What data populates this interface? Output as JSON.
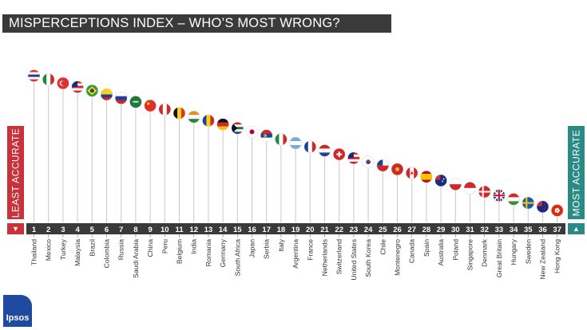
{
  "title": "MISPERCEPTIONS INDEX – WHO’S MOST WRONG?",
  "left_label": "LEAST ACCURATE",
  "right_label": "MOST ACCURATE",
  "left_arrow": "▼",
  "right_arrow": "▲",
  "logo_text": "Ipsos",
  "colors": {
    "title_bg": "#3a3a3a",
    "least": "#c8323c",
    "most": "#2a8a86",
    "stem": "#c8c8c8",
    "logo": "#1f4aa0"
  },
  "chart_data": {
    "type": "lollipop",
    "title": "MISPERCEPTIONS INDEX – WHO’S MOST WRONG?",
    "categories": [
      "Thailand",
      "Mexico",
      "Turkey",
      "Malaysia",
      "Brazil",
      "Colombia",
      "Russia",
      "Saudi Arabia",
      "China",
      "Peru",
      "Belgium",
      "India",
      "Romania",
      "Germany",
      "South Africa",
      "Japan",
      "Serbia",
      "Italy",
      "Argentina",
      "France",
      "Netherlands",
      "Switzerland",
      "United States",
      "South Korea",
      "Chile",
      "Montenegro",
      "Canada",
      "Spain",
      "Australia",
      "Poland",
      "Singapore",
      "Denmark",
      "Great Britain",
      "Hungary",
      "Sweden",
      "New Zealand",
      "Hong Kong"
    ],
    "ranks": [
      1,
      2,
      3,
      4,
      5,
      6,
      7,
      8,
      9,
      10,
      11,
      12,
      13,
      14,
      15,
      16,
      17,
      18,
      19,
      20,
      21,
      22,
      23,
      24,
      25,
      26,
      27,
      28,
      29,
      30,
      31,
      32,
      33,
      34,
      35,
      36,
      37
    ],
    "flags": [
      {
        "kind": "h",
        "colors": [
          "#e03030",
          "#ffffff",
          "#2a3a8c",
          "#ffffff",
          "#e03030"
        ]
      },
      {
        "kind": "v",
        "colors": [
          "#1e8a3e",
          "#ffffff",
          "#d02828"
        ]
      },
      {
        "kind": "solid",
        "colors": [
          "#e03030"
        ],
        "mark": "crescent"
      },
      {
        "kind": "h",
        "colors": [
          "#d02828",
          "#ffffff",
          "#d02828",
          "#ffffff",
          "#d02828"
        ],
        "canton": "#1a2a80"
      },
      {
        "kind": "solid",
        "colors": [
          "#2a9a3a"
        ],
        "mark": "diamond"
      },
      {
        "kind": "h",
        "colors": [
          "#fcd116",
          "#fcd116",
          "#1e3f9a",
          "#d02828"
        ]
      },
      {
        "kind": "h",
        "colors": [
          "#ffffff",
          "#1e3f9a",
          "#d02828"
        ]
      },
      {
        "kind": "solid",
        "colors": [
          "#1e7a3a"
        ],
        "mark": "script"
      },
      {
        "kind": "solid",
        "colors": [
          "#e03028"
        ],
        "mark": "star"
      },
      {
        "kind": "v",
        "colors": [
          "#d02828",
          "#ffffff",
          "#d02828"
        ]
      },
      {
        "kind": "v",
        "colors": [
          "#111111",
          "#fcd116",
          "#e03028"
        ]
      },
      {
        "kind": "h",
        "colors": [
          "#f08a24",
          "#ffffff",
          "#1e8a3e"
        ]
      },
      {
        "kind": "v",
        "colors": [
          "#1e3f9a",
          "#fcd116",
          "#d02828"
        ]
      },
      {
        "kind": "h",
        "colors": [
          "#111111",
          "#d02828",
          "#fcc20a"
        ]
      },
      {
        "kind": "h",
        "colors": [
          "#d02828",
          "#ffffff",
          "#1e7a3a",
          "#ffffff",
          "#1e3f9a"
        ],
        "triangle": "#111111"
      },
      {
        "kind": "solid",
        "colors": [
          "#ffffff"
        ],
        "mark": "disc"
      },
      {
        "kind": "h",
        "colors": [
          "#d02828",
          "#1e3f9a",
          "#ffffff"
        ],
        "mark": "shield"
      },
      {
        "kind": "v",
        "colors": [
          "#1e8a3e",
          "#ffffff",
          "#d02828"
        ]
      },
      {
        "kind": "h",
        "colors": [
          "#74acdf",
          "#ffffff",
          "#74acdf"
        ]
      },
      {
        "kind": "v",
        "colors": [
          "#1e3f9a",
          "#ffffff",
          "#d02828"
        ]
      },
      {
        "kind": "h",
        "colors": [
          "#c82828",
          "#ffffff",
          "#1e3f9a"
        ]
      },
      {
        "kind": "solid",
        "colors": [
          "#d02828"
        ],
        "mark": "cross"
      },
      {
        "kind": "h",
        "colors": [
          "#d02828",
          "#ffffff",
          "#d02828",
          "#ffffff",
          "#d02828"
        ],
        "canton": "#1a2a80"
      },
      {
        "kind": "solid",
        "colors": [
          "#ffffff"
        ],
        "mark": "taegeuk"
      },
      {
        "kind": "h",
        "colors": [
          "#ffffff",
          "#d02828"
        ],
        "canton": "#1e3f9a"
      },
      {
        "kind": "solid",
        "colors": [
          "#d02828"
        ],
        "mark": "gold"
      },
      {
        "kind": "v",
        "colors": [
          "#d02828",
          "#ffffff",
          "#d02828"
        ],
        "mark": "leaf"
      },
      {
        "kind": "h",
        "colors": [
          "#c60b1e",
          "#ffc400",
          "#ffc400",
          "#c60b1e"
        ]
      },
      {
        "kind": "solid",
        "colors": [
          "#1a2a80"
        ],
        "mark": "stars"
      },
      {
        "kind": "h",
        "colors": [
          "#ffffff",
          "#d02828"
        ]
      },
      {
        "kind": "h",
        "colors": [
          "#d02828",
          "#ffffff"
        ]
      },
      {
        "kind": "solid",
        "colors": [
          "#d02828"
        ],
        "mark": "nordic_white"
      },
      {
        "kind": "solid",
        "colors": [
          "#1a2a80"
        ],
        "mark": "union"
      },
      {
        "kind": "h",
        "colors": [
          "#d02828",
          "#ffffff",
          "#3a8a3a"
        ]
      },
      {
        "kind": "solid",
        "colors": [
          "#1e5aa8"
        ],
        "mark": "nordic_yellow"
      },
      {
        "kind": "solid",
        "colors": [
          "#1a2a80"
        ],
        "mark": "nz"
      },
      {
        "kind": "solid",
        "colors": [
          "#de2910"
        ],
        "mark": "flower"
      }
    ]
  }
}
